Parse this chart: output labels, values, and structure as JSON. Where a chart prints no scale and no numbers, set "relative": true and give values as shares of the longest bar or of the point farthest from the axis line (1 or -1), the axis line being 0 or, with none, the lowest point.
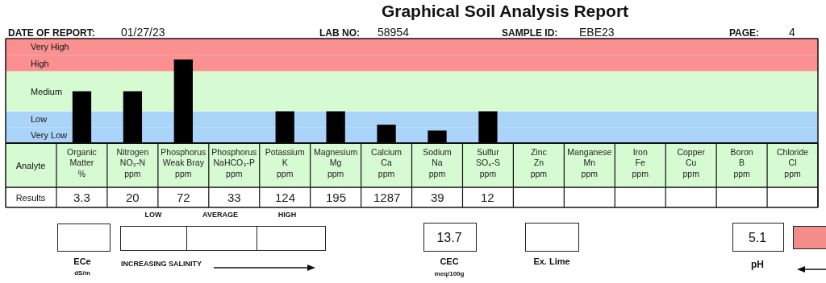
{
  "chart_data": {
    "type": "bar",
    "title": "Graphical Soil Analysis Report",
    "categories": [
      "Organic\nMatter\n%",
      "Nitrogen\nNO₃-N\nppm",
      "Phosphorus\nWeak Bray\nppm",
      "Phosphorus\nNaHCO₃-P\nppm",
      "Potassium\nK\nppm",
      "Magnesium\nMg\nppm",
      "Calcium\nCa\nppm",
      "Sodium\nNa\nppm",
      "Sulfur\nSO₄-S\nppm",
      "Zinc\nZn\nppm",
      "Manganese\nMn\nppm",
      "Iron\nFe\nppm",
      "Copper\nCu\nppm",
      "Boron\nB\nppm",
      "Chloride\nCl\nppm"
    ],
    "values": [
      0.62,
      0.62,
      1,
      null,
      0.38,
      0.38,
      0.22,
      0.15,
      0.38,
      null,
      null,
      null,
      null,
      null,
      null
    ],
    "color": "#000000",
    "relative": true,
    "bands": [
      {
        "axis": "y",
        "from": 0,
        "to": 0.19,
        "label": "Very Low",
        "color": "#aad4fa"
      },
      {
        "axis": "y",
        "from": 0.19,
        "to": 0.38,
        "label": "Low",
        "color": "#aad4fa"
      },
      {
        "axis": "y",
        "from": 0.38,
        "to": 0.86,
        "label": "Medium",
        "color": "#d6fad2"
      },
      {
        "axis": "y",
        "from": 0.86,
        "to": 1.05,
        "label": "High",
        "color": "#fa9090"
      },
      {
        "axis": "y",
        "from": 1.05,
        "to": 1.25,
        "label": "Very High",
        "color": "#fa9090"
      }
    ],
    "annotations": [
      "DATE OF REPORT:",
      "01/27/23",
      "LAB NO:",
      "58954",
      "SAMPLE ID:",
      "EBE23",
      "PAGE:",
      "4",
      "Analyte",
      "Results",
      "LOW",
      "AVERAGE",
      "HIGH",
      "ECe",
      "dS/m",
      "INCREASING SALINITY",
      "13.7",
      "CEC",
      "meq/100g",
      "Ex. Lime",
      "5.1",
      "pH",
      "3.3",
      "20",
      "72",
      "33",
      "124",
      "195",
      "1287",
      "39",
      "12"
    ]
  }
}
